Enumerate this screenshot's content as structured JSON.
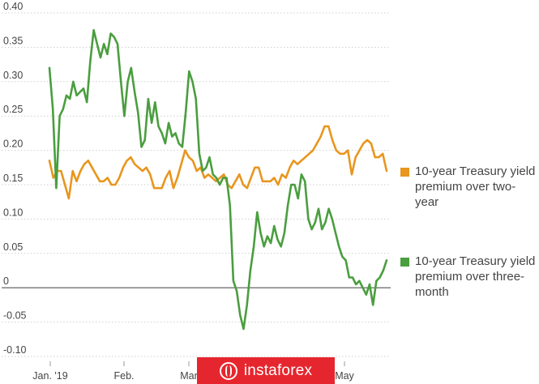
{
  "chart_data": {
    "type": "line",
    "x_labels": [
      "Jan. '19",
      "Feb.",
      "Mar",
      "",
      "May"
    ],
    "ylim": [
      -0.1,
      0.4
    ],
    "y_ticks": [
      "0.40",
      "0.35",
      "0.30",
      "0.25",
      "0.20",
      "0.15",
      "0.10",
      "0.05",
      "0",
      "-0.05",
      "-0.10"
    ],
    "y_tick_values": [
      0.4,
      0.35,
      0.3,
      0.25,
      0.2,
      0.15,
      0.1,
      0.05,
      0,
      -0.05,
      -0.1
    ],
    "grid": "horizontal dotted, solid zero line",
    "legend_position": "right",
    "series": [
      {
        "name": "10-year Treasury yield premium over two-year",
        "color": "#e8961e",
        "values": [
          0.185,
          0.16,
          0.17,
          0.17,
          0.15,
          0.13,
          0.17,
          0.155,
          0.17,
          0.18,
          0.185,
          0.175,
          0.165,
          0.155,
          0.155,
          0.16,
          0.15,
          0.15,
          0.16,
          0.175,
          0.185,
          0.19,
          0.18,
          0.175,
          0.17,
          0.175,
          0.165,
          0.145,
          0.145,
          0.145,
          0.16,
          0.17,
          0.145,
          0.16,
          0.18,
          0.2,
          0.19,
          0.185,
          0.17,
          0.175,
          0.16,
          0.165,
          0.16,
          0.155,
          0.16,
          0.165,
          0.15,
          0.145,
          0.155,
          0.165,
          0.15,
          0.145,
          0.16,
          0.175,
          0.175,
          0.155,
          0.155,
          0.155,
          0.16,
          0.15,
          0.165,
          0.16,
          0.175,
          0.185,
          0.18,
          0.185,
          0.19,
          0.195,
          0.2,
          0.21,
          0.22,
          0.235,
          0.235,
          0.215,
          0.2,
          0.195,
          0.195,
          0.2,
          0.165,
          0.19,
          0.2,
          0.21,
          0.215,
          0.21,
          0.19,
          0.19,
          0.195,
          0.17
        ]
      },
      {
        "name": "10-year Treasury yield premium over three-month",
        "color": "#4a9e3f",
        "values": [
          0.32,
          0.26,
          0.145,
          0.25,
          0.26,
          0.28,
          0.275,
          0.3,
          0.28,
          0.285,
          0.29,
          0.27,
          0.33,
          0.375,
          0.355,
          0.335,
          0.355,
          0.34,
          0.37,
          0.365,
          0.355,
          0.3,
          0.25,
          0.3,
          0.32,
          0.285,
          0.255,
          0.205,
          0.215,
          0.275,
          0.24,
          0.27,
          0.235,
          0.225,
          0.21,
          0.24,
          0.22,
          0.225,
          0.21,
          0.205,
          0.255,
          0.315,
          0.3,
          0.275,
          0.195,
          0.17,
          0.175,
          0.19,
          0.165,
          0.16,
          0.15,
          0.16,
          0.16,
          0.12,
          0.01,
          -0.005,
          -0.04,
          -0.06,
          -0.025,
          0.025,
          0.06,
          0.11,
          0.08,
          0.06,
          0.075,
          0.065,
          0.09,
          0.07,
          0.06,
          0.08,
          0.12,
          0.15,
          0.15,
          0.13,
          0.165,
          0.155,
          0.1,
          0.085,
          0.095,
          0.115,
          0.085,
          0.095,
          0.115,
          0.1,
          0.08,
          0.06,
          0.045,
          0.04,
          0.015,
          0.015,
          0.005,
          0.01,
          0.0,
          -0.01,
          0.005,
          -0.025,
          0.01,
          0.015,
          0.025,
          0.04
        ]
      }
    ]
  },
  "watermark": {
    "text": "instaforex"
  }
}
